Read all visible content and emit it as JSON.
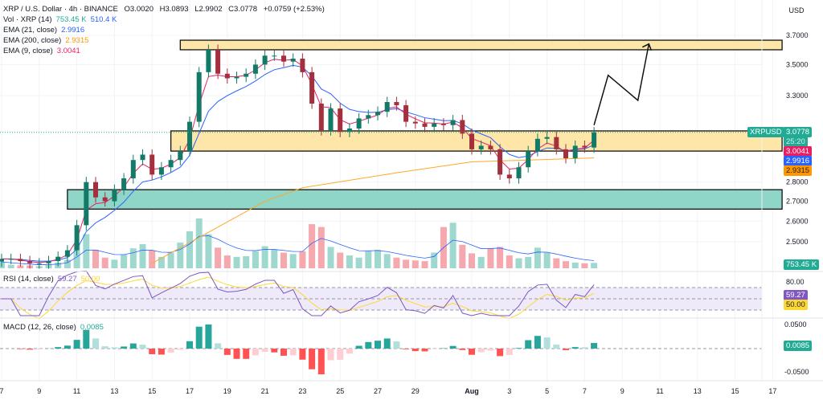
{
  "header": {
    "symbol": "XRP / U.S. Dollar · 4h · BINANCE",
    "open": "O3.0020",
    "high": "H3.0893",
    "low": "L2.9902",
    "close": "C3.0778",
    "change": "+0.0759 (+2.53%)",
    "currency": "USD"
  },
  "indicators": {
    "vol": {
      "label": "Vol · XRP (14)",
      "value": "753.45 K",
      "ma": "510.4 K",
      "color": "#22ab94",
      "ma_color": "#2962ff"
    },
    "ema21": {
      "label": "EMA (21, close)",
      "value": "2.9916",
      "color": "#2962ff"
    },
    "ema200": {
      "label": "EMA (200, close)",
      "value": "2.9315",
      "color": "#ff9800"
    },
    "ema9": {
      "label": "EMA (9, close)",
      "value": "3.0041",
      "color": "#e91e63"
    },
    "rsi": {
      "label": "RSI (14, close)",
      "value": "59.27",
      "ma": "50.00",
      "color": "#7e57c2",
      "ma_color": "#fdd835"
    },
    "macd": {
      "label": "MACD (12, 26, close)",
      "value": "0.0085",
      "color": "#22ab94"
    }
  },
  "price_tags": {
    "symbol": "XRPUSD",
    "last": "3.0778",
    "countdown": "25:20",
    "ema9": "3.0041",
    "ema21": "2.9916",
    "ema200": "2.9315",
    "volume": "753.45 K",
    "rsi": "59.27",
    "rsi_ma": "50.00",
    "macd": "0.0085"
  },
  "chart_data": {
    "type": "candlestick",
    "scale": "log",
    "grid": true,
    "ylim": [
      2.38,
      3.75
    ],
    "price_ticks": [
      "3.7000",
      "3.5000",
      "3.3000",
      "2.8000",
      "2.7000",
      "2.6000",
      "2.5000"
    ],
    "rsi_ticks": [
      "80.00"
    ],
    "macd_ticks": [
      "0.0500",
      "-0.0500"
    ],
    "x_ticks": [
      {
        "label": "7",
        "date": "Jul 7 00:00"
      },
      {
        "label": "9",
        "date": "Jul 9 00:00"
      },
      {
        "label": "11",
        "date": "Jul 11 00:00"
      },
      {
        "label": "13",
        "date": "Jul 13 00:00"
      },
      {
        "label": "15",
        "date": "Jul 15 00:00"
      },
      {
        "label": "17",
        "date": "Jul 17 00:00"
      },
      {
        "label": "19",
        "date": "Jul 19 00:00"
      },
      {
        "label": "21",
        "date": "Jul 21 00:00"
      },
      {
        "label": "23",
        "date": "Jul 23 00:00"
      },
      {
        "label": "25",
        "date": "Jul 25 00:00"
      },
      {
        "label": "27",
        "date": "Jul 27 00:00"
      },
      {
        "label": "29",
        "date": "Jul 29 00:00"
      },
      {
        "label": "Aug",
        "date": "Aug 1 00:00"
      },
      {
        "label": "3",
        "date": "Aug 3 00:00"
      },
      {
        "label": "5",
        "date": "Aug 5 00:00"
      },
      {
        "label": "7",
        "date": "Aug 7 00:00"
      },
      {
        "label": "9",
        "date": "Aug 9 00:00"
      },
      {
        "label": "11",
        "date": "Aug 11 00:00"
      },
      {
        "label": "13",
        "date": "Aug 13 00:00"
      },
      {
        "label": "15",
        "date": "Aug 15 00:00"
      },
      {
        "label": "17",
        "date": "Aug 17 00:00"
      }
    ],
    "closes": [
      2.42,
      2.42,
      2.41,
      2.4,
      2.4,
      2.41,
      2.43,
      2.46,
      2.58,
      2.8,
      2.72,
      2.7,
      2.76,
      2.82,
      2.92,
      2.95,
      2.84,
      2.88,
      2.92,
      2.97,
      3.14,
      3.45,
      3.6,
      3.44,
      3.41,
      3.42,
      3.44,
      3.5,
      3.56,
      3.56,
      3.52,
      3.54,
      3.45,
      3.25,
      3.09,
      3.22,
      3.08,
      3.1,
      3.16,
      3.18,
      3.2,
      3.26,
      3.24,
      3.14,
      3.13,
      3.11,
      3.13,
      3.12,
      3.15,
      3.07,
      2.98,
      3.0,
      2.98,
      2.84,
      2.82,
      2.88,
      2.97,
      3.04,
      3.05,
      2.98,
      2.93,
      3.0,
      2.99,
      3.0778
    ],
    "first_date": "Jul 7 00:00",
    "volumes_m": [
      0.9,
      0.5,
      0.4,
      0.4,
      0.3,
      0.5,
      0.8,
      1.2,
      3.5,
      4.8,
      2.6,
      1.5,
      1.2,
      1.9,
      2.8,
      3.4,
      2.5,
      1.6,
      2.2,
      3.6,
      5.2,
      7.0,
      4.8,
      2.9,
      1.8,
      1.6,
      1.7,
      2.4,
      3.1,
      2.6,
      2.2,
      2.0,
      2.4,
      6.2,
      5.8,
      3.0,
      2.2,
      1.8,
      1.5,
      2.4,
      2.6,
      2.0,
      1.5,
      1.2,
      1.1,
      1.0,
      2.2,
      5.8,
      6.4,
      3.3,
      2.1,
      1.6,
      2.8,
      3.0,
      1.8,
      1.4,
      1.6,
      2.9,
      2.2,
      1.4,
      1.0,
      0.8,
      0.7,
      0.75
    ],
    "ema200": [
      [
        "Jul 15 00:00",
        2.4
      ],
      [
        "Jul 21 00:00",
        2.7
      ],
      [
        "Jul 23 00:00",
        2.77
      ],
      [
        "Jul 28 00:00",
        2.85
      ],
      [
        "Aug 1 00:00",
        2.91
      ],
      [
        "Aug 7 12:00",
        2.9315
      ]
    ],
    "zones": [
      {
        "from": "Jul 16 12:00",
        "to": "Aug 17 12:00",
        "low": 3.6,
        "high": 3.666,
        "color": "#fde6a8"
      },
      {
        "from": "Jul 16 00:00",
        "to": "Aug 17 12:00",
        "low": 2.97,
        "high": 3.086,
        "color": "#fde6a8"
      },
      {
        "from": "Jul 10 12:00",
        "to": "Aug 17 12:00",
        "low": 2.66,
        "high": 2.76,
        "color": "#8fd5c8"
      }
    ],
    "projection": [
      [
        "Aug 7 12:00",
        3.12
      ],
      [
        "Aug 8 06:00",
        3.43
      ],
      [
        "Aug 9 20:00",
        3.27
      ],
      [
        "Aug 10 10:00",
        3.64
      ]
    ]
  }
}
